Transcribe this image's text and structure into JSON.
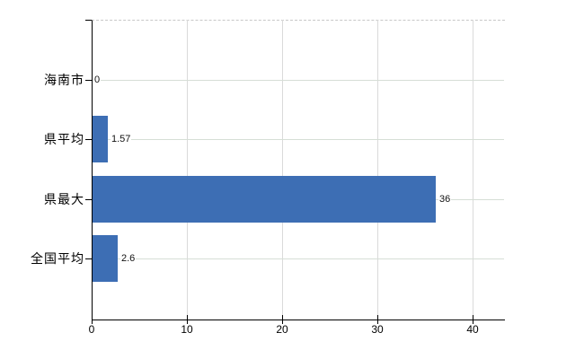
{
  "chart_data": {
    "type": "bar",
    "orientation": "horizontal",
    "title": "",
    "xlabel": "",
    "ylabel": "",
    "categories": [
      "海南市",
      "県平均",
      "県最大",
      "全国平均"
    ],
    "values": [
      0,
      1.57,
      36,
      2.6
    ],
    "value_labels": [
      "0",
      "1.57",
      "36",
      "2.6"
    ],
    "x_ticks": [
      0,
      10,
      20,
      30,
      40
    ],
    "x_tick_labels": [
      "0",
      "10",
      "20",
      "30",
      "40"
    ],
    "xlim": [
      0,
      43.3
    ],
    "grid": "on",
    "legend": "none",
    "bar_color": "#3d6eb4",
    "axis_color": "#000000",
    "gridline_color_vertical": "#dadada",
    "gridline_color_horizontal": "#d6ded6",
    "plot_top_border": "dashed #c8c8c8",
    "background_color": "#ffffff"
  }
}
